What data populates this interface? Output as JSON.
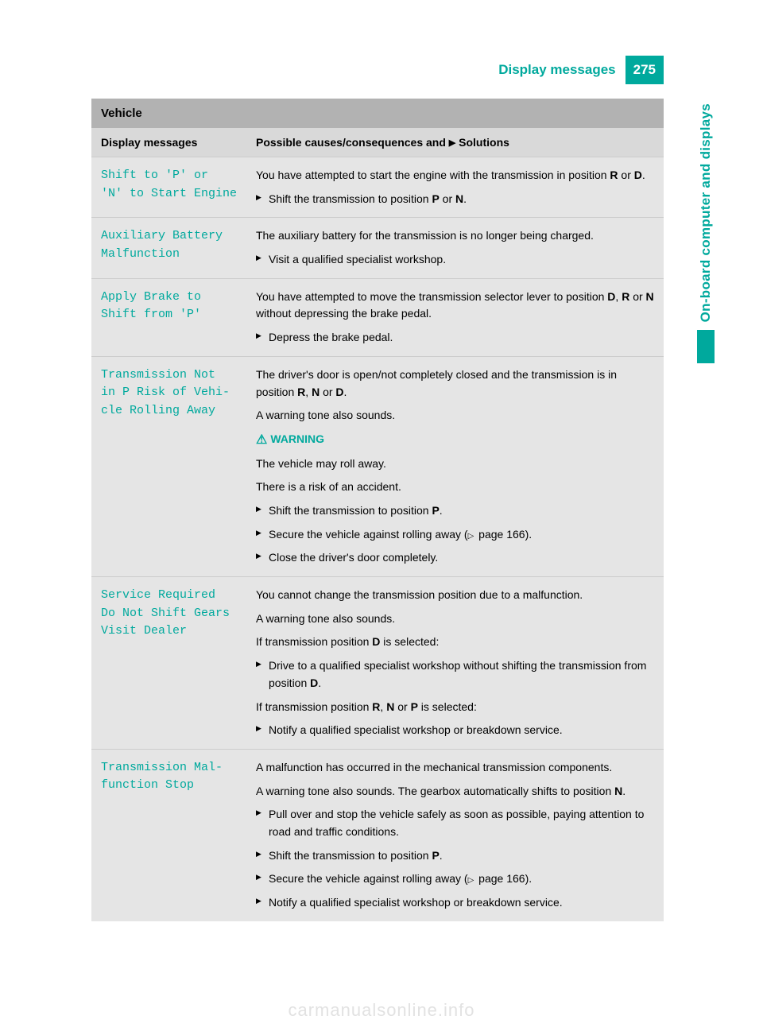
{
  "header": {
    "title": "Display messages",
    "page_number": "275"
  },
  "side_tab": {
    "text": "On-board computer and displays"
  },
  "section_title": "Vehicle",
  "column_headers": {
    "left": "Display messages",
    "right_prefix": "Possible causes/consequences and ",
    "right_suffix": " Solutions"
  },
  "rows": [
    {
      "code": "Shift to 'P' or\n'N' to Start Engine",
      "body": [
        {
          "type": "text",
          "parts": [
            "You have attempted to start the engine with the transmission in position ",
            {
              "b": "R"
            },
            " or ",
            {
              "b": "D"
            },
            "."
          ]
        },
        {
          "type": "action",
          "parts": [
            "Shift the transmission to position ",
            {
              "b": "P"
            },
            " or ",
            {
              "b": "N"
            },
            "."
          ]
        }
      ]
    },
    {
      "code": "Auxiliary Battery\nMalfunction",
      "body": [
        {
          "type": "text",
          "parts": [
            "The auxiliary battery for the transmission is no longer being charged."
          ]
        },
        {
          "type": "action",
          "parts": [
            "Visit a qualified specialist workshop."
          ]
        }
      ]
    },
    {
      "code": "Apply Brake to\nShift from 'P'",
      "body": [
        {
          "type": "text",
          "parts": [
            "You have attempted to move the transmission selector lever to position ",
            {
              "b": "D"
            },
            ", ",
            {
              "b": "R"
            },
            " or ",
            {
              "b": "N"
            },
            " without depressing the brake pedal."
          ]
        },
        {
          "type": "action",
          "parts": [
            "Depress the brake pedal."
          ]
        }
      ]
    },
    {
      "code": "Transmission Not\nin P Risk of Vehi‐\ncle Rolling Away",
      "body": [
        {
          "type": "text",
          "parts": [
            "The driver's door is open/not completely closed and the transmission is in position ",
            {
              "b": "R"
            },
            ", ",
            {
              "b": "N"
            },
            " or ",
            {
              "b": "D"
            },
            "."
          ]
        },
        {
          "type": "text",
          "parts": [
            "A warning tone also sounds."
          ]
        },
        {
          "type": "warning",
          "label": "WARNING"
        },
        {
          "type": "text",
          "parts": [
            "The vehicle may roll away."
          ]
        },
        {
          "type": "text",
          "parts": [
            "There is a risk of an accident."
          ]
        },
        {
          "type": "action",
          "parts": [
            "Shift the transmission to position ",
            {
              "b": "P"
            },
            "."
          ]
        },
        {
          "type": "action",
          "parts": [
            "Secure the vehicle against rolling away (",
            {
              "ref": true
            },
            " page 166)."
          ]
        },
        {
          "type": "action",
          "parts": [
            "Close the driver's door completely."
          ]
        }
      ]
    },
    {
      "code": "Service Required\nDo Not Shift Gears\nVisit Dealer",
      "body": [
        {
          "type": "text",
          "parts": [
            "You cannot change the transmission position due to a malfunction."
          ]
        },
        {
          "type": "text",
          "parts": [
            "A warning tone also sounds."
          ]
        },
        {
          "type": "text",
          "parts": [
            "If transmission position ",
            {
              "b": "D"
            },
            " is selected:"
          ]
        },
        {
          "type": "action",
          "parts": [
            "Drive to a qualified specialist workshop without shifting the transmission from position ",
            {
              "b": "D"
            },
            "."
          ]
        },
        {
          "type": "text",
          "parts": [
            "If transmission position ",
            {
              "b": "R"
            },
            ", ",
            {
              "b": "N"
            },
            " or ",
            {
              "b": "P"
            },
            " is selected:"
          ]
        },
        {
          "type": "action",
          "parts": [
            "Notify a qualified specialist workshop or breakdown service."
          ]
        }
      ]
    },
    {
      "code": "Transmission Mal‐\nfunction Stop",
      "body": [
        {
          "type": "text",
          "parts": [
            "A malfunction has occurred in the mechanical transmission components."
          ]
        },
        {
          "type": "text",
          "parts": [
            "A warning tone also sounds. The gearbox automatically shifts to position ",
            {
              "b": "N"
            },
            "."
          ]
        },
        {
          "type": "action",
          "parts": [
            "Pull over and stop the vehicle safely as soon as possible, paying attention to road and traffic conditions."
          ]
        },
        {
          "type": "action",
          "parts": [
            "Shift the transmission to position ",
            {
              "b": "P"
            },
            "."
          ]
        },
        {
          "type": "action",
          "parts": [
            "Secure the vehicle against rolling away (",
            {
              "ref": true
            },
            " page 166)."
          ]
        },
        {
          "type": "action",
          "parts": [
            "Notify a qualified specialist workshop or breakdown service."
          ]
        }
      ]
    }
  ],
  "watermark": "carmanualsonline.info",
  "colors": {
    "accent": "#00a99d",
    "section_bg": "#b2b2b2",
    "header_bg": "#d9d9d9",
    "row_bg": "#e5e5e5"
  }
}
